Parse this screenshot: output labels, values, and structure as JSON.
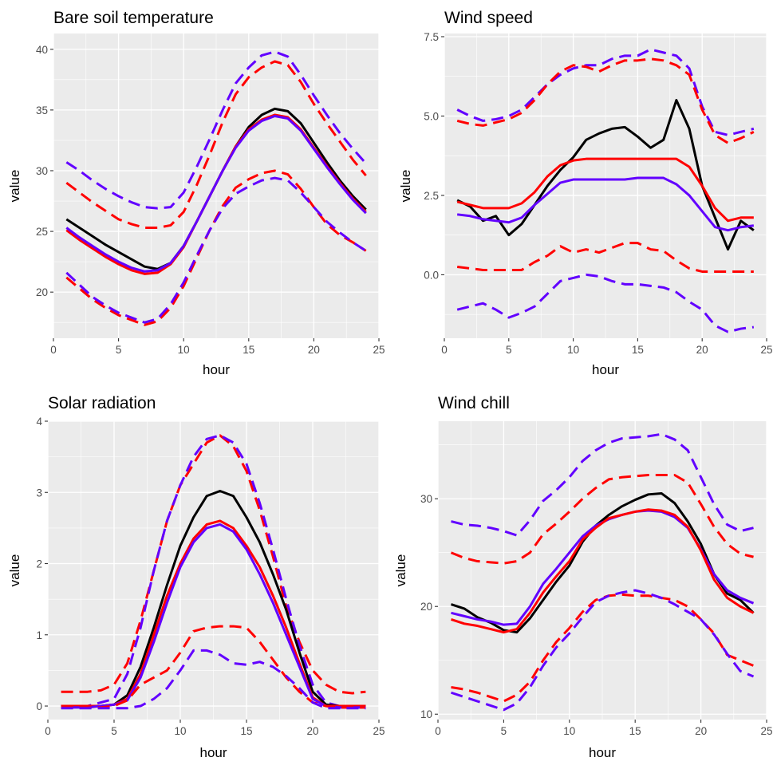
{
  "colors": {
    "observed": "#000000",
    "model_a": "#6200FF",
    "model_b": "#FF0000"
  },
  "chart_data": [
    {
      "type": "line",
      "title": "Bare soil temperature",
      "xlabel": "hour",
      "ylabel": "value",
      "xlim": [
        0,
        25
      ],
      "ylim": [
        16.2,
        41.3
      ],
      "xticks": [
        0,
        5,
        10,
        15,
        20,
        25
      ],
      "yticks": [
        20,
        25,
        30,
        35,
        40
      ],
      "x": [
        1,
        2,
        3,
        4,
        5,
        6,
        7,
        8,
        9,
        10,
        11,
        12,
        13,
        14,
        15,
        16,
        17,
        18,
        19,
        20,
        21,
        22,
        23,
        24
      ],
      "series": [
        {
          "name": "black",
          "color": "#000000",
          "dashed": false,
          "values": [
            26.0,
            25.3,
            24.6,
            23.9,
            23.3,
            22.7,
            22.1,
            21.9,
            22.4,
            23.8,
            25.8,
            27.9,
            30.0,
            32.0,
            33.6,
            34.6,
            35.1,
            34.9,
            33.9,
            32.3,
            30.7,
            29.2,
            27.9,
            26.8
          ]
        },
        {
          "name": "red",
          "color": "#FF0000",
          "dashed": false,
          "values": [
            25.1,
            24.3,
            23.6,
            22.9,
            22.3,
            21.8,
            21.5,
            21.6,
            22.3,
            23.7,
            25.8,
            27.9,
            30.0,
            32.0,
            33.4,
            34.2,
            34.6,
            34.4,
            33.4,
            31.9,
            30.4,
            29.0,
            27.7,
            26.6
          ]
        },
        {
          "name": "purple",
          "color": "#6200FF",
          "dashed": false,
          "values": [
            25.3,
            24.5,
            23.8,
            23.1,
            22.5,
            22.0,
            21.7,
            21.8,
            22.4,
            23.8,
            25.8,
            27.9,
            30.0,
            31.9,
            33.3,
            34.1,
            34.5,
            34.3,
            33.3,
            31.8,
            30.3,
            28.9,
            27.6,
            26.5
          ]
        },
        {
          "name": "purple upper",
          "color": "#6200FF",
          "dashed": true,
          "values": [
            30.7,
            30.0,
            29.2,
            28.5,
            27.9,
            27.4,
            27.0,
            26.9,
            27.0,
            28.2,
            30.3,
            32.6,
            35.0,
            37.2,
            38.5,
            39.5,
            39.8,
            39.4,
            37.9,
            36.2,
            34.6,
            33.1,
            31.8,
            30.6
          ]
        },
        {
          "name": "red upper",
          "color": "#FF0000",
          "dashed": true,
          "values": [
            29.0,
            28.2,
            27.4,
            26.7,
            26.0,
            25.6,
            25.3,
            25.3,
            25.5,
            26.6,
            28.8,
            31.3,
            34.0,
            36.3,
            37.7,
            38.5,
            39.0,
            38.7,
            37.3,
            35.5,
            33.9,
            32.4,
            30.9,
            29.6
          ]
        },
        {
          "name": "red lower",
          "color": "#FF0000",
          "dashed": true,
          "values": [
            21.2,
            20.3,
            19.4,
            18.7,
            18.1,
            17.7,
            17.3,
            17.6,
            18.7,
            20.5,
            22.8,
            25.1,
            27.1,
            28.6,
            29.3,
            29.8,
            30.0,
            29.7,
            28.5,
            27.0,
            25.6,
            24.7,
            24.1,
            23.4
          ]
        },
        {
          "name": "purple lower",
          "color": "#6200FF",
          "dashed": true,
          "values": [
            21.6,
            20.6,
            19.6,
            18.9,
            18.3,
            17.9,
            17.5,
            17.8,
            19.0,
            20.8,
            23.0,
            25.1,
            26.9,
            28.1,
            28.7,
            29.2,
            29.4,
            29.2,
            28.2,
            27.0,
            25.8,
            24.9,
            24.1,
            23.4
          ]
        }
      ]
    },
    {
      "type": "line",
      "title": "Wind speed",
      "xlabel": "hour",
      "ylabel": "value",
      "xlim": [
        0,
        25
      ],
      "ylim": [
        -2.0,
        7.6
      ],
      "xticks": [
        0,
        5,
        10,
        15,
        20,
        25
      ],
      "yticks": [
        0.0,
        2.5,
        5.0,
        7.5
      ],
      "ytick_labels": [
        "0.0",
        "2.5",
        "5.0",
        "7.5"
      ],
      "x": [
        1,
        2,
        3,
        4,
        5,
        6,
        7,
        8,
        9,
        10,
        11,
        12,
        13,
        14,
        15,
        16,
        17,
        18,
        19,
        20,
        21,
        22,
        23,
        24
      ],
      "series": [
        {
          "name": "purple upper",
          "color": "#6200FF",
          "dashed": true,
          "values": [
            5.2,
            5.0,
            4.85,
            4.9,
            5.0,
            5.2,
            5.6,
            6.0,
            6.3,
            6.5,
            6.6,
            6.6,
            6.8,
            6.9,
            6.9,
            7.1,
            7.0,
            6.9,
            6.5,
            5.3,
            4.5,
            4.4,
            4.5,
            4.6
          ]
        },
        {
          "name": "red upper",
          "color": "#FF0000",
          "dashed": true,
          "values": [
            4.85,
            4.75,
            4.7,
            4.8,
            4.9,
            5.1,
            5.5,
            6.0,
            6.4,
            6.6,
            6.55,
            6.4,
            6.6,
            6.75,
            6.75,
            6.8,
            6.75,
            6.6,
            6.3,
            5.2,
            4.4,
            4.15,
            4.3,
            4.5
          ]
        },
        {
          "name": "black",
          "color": "#000000",
          "dashed": false,
          "values": [
            2.35,
            2.15,
            1.7,
            1.85,
            1.25,
            1.6,
            2.2,
            2.8,
            3.3,
            3.7,
            4.25,
            4.45,
            4.6,
            4.65,
            4.35,
            4.0,
            4.25,
            5.5,
            4.6,
            2.8,
            1.8,
            0.8,
            1.7,
            1.4
          ]
        },
        {
          "name": "red",
          "color": "#FF0000",
          "dashed": false,
          "values": [
            2.3,
            2.2,
            2.1,
            2.1,
            2.1,
            2.25,
            2.6,
            3.1,
            3.45,
            3.6,
            3.65,
            3.65,
            3.65,
            3.65,
            3.65,
            3.65,
            3.65,
            3.65,
            3.4,
            2.8,
            2.1,
            1.7,
            1.8,
            1.8
          ]
        },
        {
          "name": "purple",
          "color": "#6200FF",
          "dashed": false,
          "values": [
            1.9,
            1.85,
            1.75,
            1.7,
            1.65,
            1.8,
            2.2,
            2.55,
            2.9,
            3.0,
            3.0,
            3.0,
            3.0,
            3.0,
            3.05,
            3.05,
            3.05,
            2.85,
            2.5,
            2.0,
            1.5,
            1.4,
            1.5,
            1.55
          ]
        },
        {
          "name": "red lower",
          "color": "#FF0000",
          "dashed": true,
          "values": [
            0.25,
            0.2,
            0.15,
            0.15,
            0.15,
            0.15,
            0.4,
            0.6,
            0.9,
            0.7,
            0.8,
            0.7,
            0.85,
            1.0,
            1.0,
            0.8,
            0.75,
            0.45,
            0.2,
            0.1,
            0.1,
            0.1,
            0.1,
            0.1
          ]
        },
        {
          "name": "purple lower",
          "color": "#6200FF",
          "dashed": true,
          "values": [
            -1.1,
            -1.0,
            -0.9,
            -1.1,
            -1.35,
            -1.2,
            -1.0,
            -0.6,
            -0.2,
            -0.1,
            0.0,
            -0.05,
            -0.2,
            -0.3,
            -0.3,
            -0.35,
            -0.4,
            -0.55,
            -0.85,
            -1.1,
            -1.6,
            -1.8,
            -1.7,
            -1.65
          ]
        }
      ]
    },
    {
      "type": "line",
      "title": "Solar radiation",
      "xlabel": "hour",
      "ylabel": "value",
      "xlim": [
        0,
        25
      ],
      "ylim": [
        -0.19,
        4.0
      ],
      "xticks": [
        0,
        5,
        10,
        15,
        20,
        25
      ],
      "yticks": [
        0,
        1,
        2,
        3,
        4
      ],
      "x": [
        1,
        2,
        3,
        4,
        5,
        6,
        7,
        8,
        9,
        10,
        11,
        12,
        13,
        14,
        15,
        16,
        17,
        18,
        19,
        20,
        21,
        22,
        23,
        24
      ],
      "series": [
        {
          "name": "red upper",
          "color": "#FF0000",
          "dashed": true,
          "values": [
            0.2,
            0.2,
            0.2,
            0.22,
            0.3,
            0.6,
            1.2,
            1.9,
            2.6,
            3.1,
            3.4,
            3.7,
            3.8,
            3.65,
            3.3,
            2.75,
            2.1,
            1.4,
            0.9,
            0.5,
            0.3,
            0.2,
            0.18,
            0.2
          ]
        },
        {
          "name": "purple upper",
          "color": "#6200FF",
          "dashed": true,
          "values": [
            0.0,
            0.0,
            0.0,
            0.05,
            0.1,
            0.45,
            1.1,
            1.9,
            2.6,
            3.1,
            3.5,
            3.75,
            3.8,
            3.7,
            3.4,
            2.85,
            2.2,
            1.5,
            0.85,
            0.3,
            0.05,
            0.0,
            0.0,
            0.0
          ]
        },
        {
          "name": "black",
          "color": "#000000",
          "dashed": false,
          "values": [
            0.0,
            0.0,
            0.0,
            0.0,
            0.02,
            0.15,
            0.55,
            1.1,
            1.7,
            2.25,
            2.65,
            2.95,
            3.02,
            2.95,
            2.65,
            2.3,
            1.85,
            1.35,
            0.75,
            0.2,
            0.02,
            0.0,
            0.0,
            0.0
          ]
        },
        {
          "name": "red",
          "color": "#FF0000",
          "dashed": false,
          "values": [
            0.0,
            0.0,
            0.0,
            0.0,
            0.02,
            0.1,
            0.45,
            1.0,
            1.55,
            2.0,
            2.35,
            2.55,
            2.6,
            2.5,
            2.25,
            1.95,
            1.55,
            1.1,
            0.6,
            0.12,
            0.0,
            0.0,
            0.0,
            0.0
          ]
        },
        {
          "name": "purple",
          "color": "#6200FF",
          "dashed": false,
          "values": [
            -0.02,
            -0.02,
            -0.02,
            0.0,
            0.02,
            0.08,
            0.4,
            0.9,
            1.45,
            1.95,
            2.3,
            2.5,
            2.55,
            2.45,
            2.2,
            1.85,
            1.45,
            1.0,
            0.55,
            0.1,
            0.0,
            -0.02,
            -0.02,
            -0.02
          ]
        },
        {
          "name": "red lower",
          "color": "#FF0000",
          "dashed": true,
          "values": [
            -0.02,
            -0.02,
            -0.02,
            -0.02,
            0.0,
            0.08,
            0.3,
            0.4,
            0.5,
            0.75,
            1.05,
            1.1,
            1.12,
            1.12,
            1.1,
            0.9,
            0.65,
            0.4,
            0.2,
            0.05,
            0.0,
            -0.02,
            -0.02,
            -0.02
          ]
        },
        {
          "name": "purple lower",
          "color": "#6200FF",
          "dashed": true,
          "values": [
            -0.03,
            -0.03,
            -0.03,
            -0.03,
            -0.03,
            -0.03,
            0.0,
            0.1,
            0.25,
            0.5,
            0.78,
            0.78,
            0.72,
            0.6,
            0.58,
            0.62,
            0.55,
            0.42,
            0.25,
            0.05,
            -0.03,
            -0.03,
            -0.03,
            -0.03
          ]
        }
      ]
    },
    {
      "type": "line",
      "title": "Wind chill",
      "xlabel": "hour",
      "ylabel": "value",
      "xlim": [
        0,
        25
      ],
      "ylim": [
        9.5,
        37.2
      ],
      "xticks": [
        0,
        5,
        10,
        15,
        20,
        25
      ],
      "yticks": [
        10,
        20,
        30
      ],
      "x": [
        1,
        2,
        3,
        4,
        5,
        6,
        7,
        8,
        9,
        10,
        11,
        12,
        13,
        14,
        15,
        16,
        17,
        18,
        19,
        20,
        21,
        22,
        23,
        24
      ],
      "series": [
        {
          "name": "purple upper",
          "color": "#6200FF",
          "dashed": true,
          "values": [
            27.9,
            27.6,
            27.5,
            27.3,
            27.0,
            26.6,
            28.0,
            29.8,
            30.8,
            32.0,
            33.5,
            34.5,
            35.2,
            35.6,
            35.7,
            35.8,
            36.0,
            35.5,
            34.5,
            32.0,
            29.5,
            27.6,
            27.0,
            27.3
          ]
        },
        {
          "name": "red upper",
          "color": "#FF0000",
          "dashed": true,
          "values": [
            25.0,
            24.5,
            24.2,
            24.1,
            24.0,
            24.2,
            25.0,
            26.7,
            27.7,
            28.8,
            30.0,
            31.0,
            31.8,
            32.0,
            32.1,
            32.2,
            32.2,
            32.2,
            31.5,
            29.5,
            27.4,
            25.8,
            24.9,
            24.6
          ]
        },
        {
          "name": "black",
          "color": "#000000",
          "dashed": false,
          "values": [
            20.2,
            19.8,
            19.0,
            18.5,
            17.8,
            17.6,
            18.9,
            20.6,
            22.3,
            23.8,
            26.0,
            27.5,
            28.5,
            29.3,
            29.9,
            30.4,
            30.5,
            29.6,
            27.9,
            25.8,
            23.0,
            21.2,
            20.6,
            19.4
          ]
        },
        {
          "name": "purple",
          "color": "#6200FF",
          "dashed": false,
          "values": [
            19.4,
            19.1,
            18.8,
            18.6,
            18.3,
            18.4,
            20.0,
            22.1,
            23.5,
            25.0,
            26.5,
            27.5,
            28.1,
            28.5,
            28.8,
            28.9,
            28.8,
            28.3,
            27.3,
            25.3,
            23.0,
            21.5,
            20.8,
            20.3
          ]
        },
        {
          "name": "red",
          "color": "#FF0000",
          "dashed": false,
          "values": [
            18.8,
            18.4,
            18.2,
            17.9,
            17.6,
            17.9,
            19.4,
            21.3,
            22.8,
            24.2,
            26.2,
            27.3,
            28.2,
            28.5,
            28.8,
            29.0,
            28.9,
            28.5,
            27.4,
            25.2,
            22.5,
            20.8,
            20.0,
            19.4
          ]
        },
        {
          "name": "red lower",
          "color": "#FF0000",
          "dashed": true,
          "values": [
            12.5,
            12.3,
            12.0,
            11.6,
            11.2,
            11.8,
            13.0,
            15.0,
            16.7,
            18.0,
            19.5,
            20.6,
            21.0,
            21.1,
            21.0,
            21.0,
            20.8,
            20.6,
            20.0,
            18.8,
            17.5,
            15.5,
            15.0,
            14.5
          ]
        },
        {
          "name": "purple lower",
          "color": "#6200FF",
          "dashed": true,
          "values": [
            12.0,
            11.6,
            11.2,
            10.8,
            10.4,
            11.0,
            12.5,
            14.5,
            16.2,
            17.5,
            19.0,
            20.4,
            21.0,
            21.3,
            21.5,
            21.2,
            20.8,
            20.2,
            19.5,
            18.8,
            17.4,
            15.6,
            14.0,
            13.5
          ]
        }
      ]
    }
  ]
}
